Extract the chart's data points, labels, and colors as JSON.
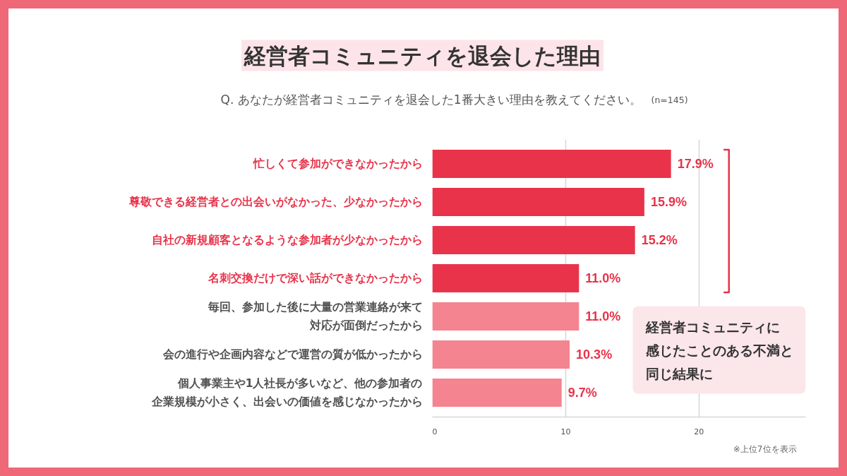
{
  "chart_data": {
    "type": "bar",
    "orientation": "horizontal",
    "title": "経営者コミュニティを退会した理由",
    "subtitle": "Q. あなたが経営者コミュニティを退会した1番大きい理由を教えてください。",
    "categories": [
      "忙しくて参加ができなかったから",
      "尊敬できる経営者との出会いがなかった、少なかったから",
      "自社の新規顧客となるような参加者が少なかったから",
      "名刺交換だけで深い話ができなかったから",
      "毎回、参加した後に大量の営業連絡が来て対応が面倒だったから",
      "会の進行や企画内容などで運営の質が低かったから",
      "個人事業主や1人社長が多いなど、他の参加者の企業規模が小さく、出会いの価値を感じなかったから"
    ],
    "values": [
      17.9,
      15.9,
      15.2,
      11.0,
      11.0,
      10.3,
      9.7
    ],
    "colors": [
      "#e8334a",
      "#e8334a",
      "#e8334a",
      "#e8334a",
      "#f4848f",
      "#f4848f",
      "#f4848f"
    ],
    "value_labels": [
      "17.9%",
      "15.9%",
      "15.2%",
      "11.0%",
      "11.0%",
      "10.3%",
      "9.7%"
    ],
    "xlim": [
      0,
      28
    ],
    "xticks": [
      0,
      10,
      20
    ],
    "grid": "x",
    "annotations": [
      "(n=145)",
      "経営者コミュニティに感じたことのある不満と同じ結果に",
      "※上位7位を表示"
    ]
  }
}
